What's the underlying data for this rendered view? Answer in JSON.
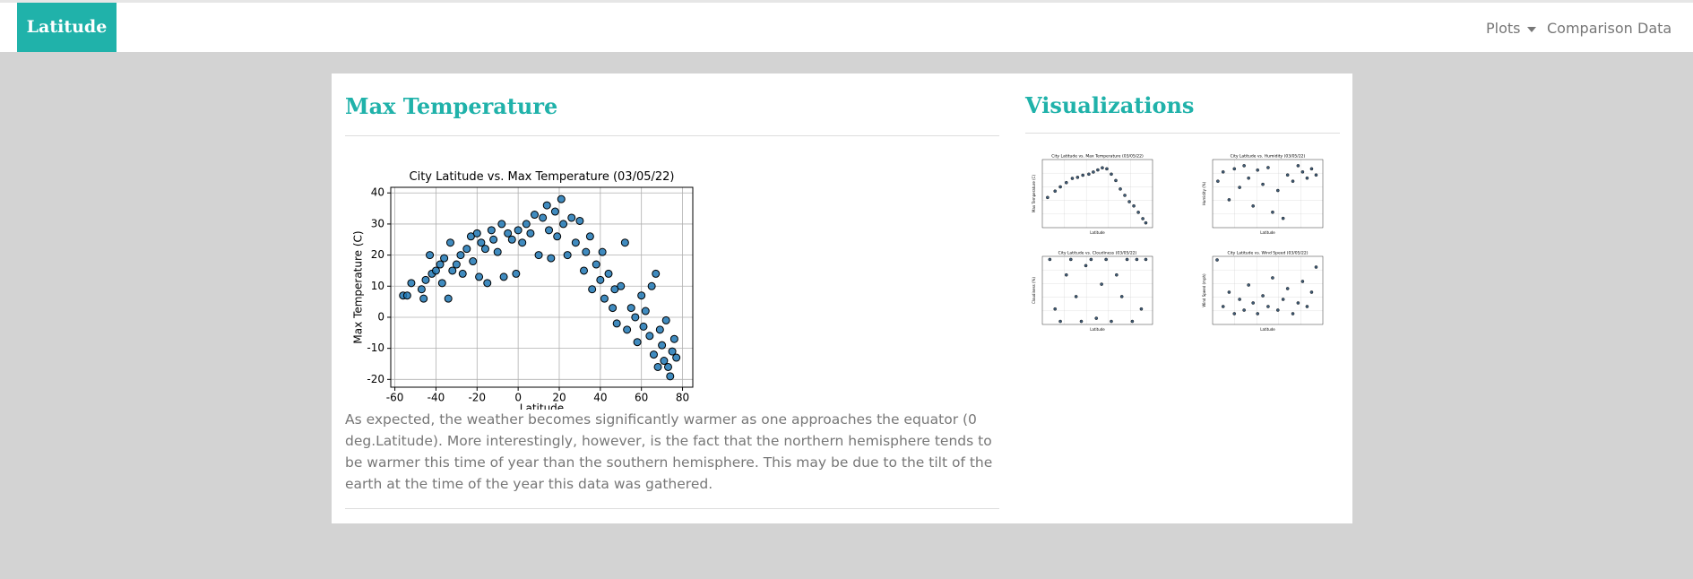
{
  "navbar": {
    "brand": "Latitude",
    "links": [
      "Plots",
      "Comparison",
      "Data"
    ]
  },
  "main": {
    "heading": "Max Temperature",
    "description": "As expected, the weather becomes significantly warmer as one approaches the equator (0 deg.Latitude). More interestingly, however, is the fact that the northern hemisphere tends to be warmer this time of year than the southern hemisphere. This may be due to the tilt of the earth at the time of the year this data was gathered."
  },
  "sidebar": {
    "heading": "Visualizations"
  },
  "chart_data": [
    {
      "type": "scatter",
      "title": "City Latitude vs. Max Temperature (03/05/22)",
      "x_label": "Latitude",
      "y_label": "Max Temperature (C)",
      "x": [
        -56,
        -54,
        -52,
        -47,
        -46,
        -45,
        -43,
        -42,
        -40,
        -38,
        -37,
        -36,
        -34,
        -33,
        -32,
        -30,
        -28,
        -27,
        -25,
        -23,
        -22,
        -20,
        -19,
        -18,
        -16,
        -15,
        -13,
        -12,
        -10,
        -8,
        -7,
        -5,
        -3,
        -1,
        0,
        2,
        4,
        6,
        8,
        10,
        12,
        14,
        15,
        16,
        18,
        19,
        21,
        22,
        24,
        26,
        28,
        30,
        32,
        33,
        35,
        36,
        38,
        40,
        41,
        42,
        44,
        46,
        47,
        48,
        50,
        52,
        53,
        55,
        57,
        58,
        60,
        61,
        62,
        64,
        65,
        66,
        67,
        68,
        69,
        70,
        71,
        72,
        73,
        74,
        75,
        76,
        77
      ],
      "y": [
        7,
        7,
        11,
        9,
        6,
        12,
        20,
        14,
        15,
        17,
        11,
        19,
        6,
        24,
        15,
        17,
        20,
        14,
        22,
        26,
        18,
        27,
        13,
        24,
        22,
        11,
        28,
        25,
        21,
        30,
        13,
        27,
        25,
        14,
        28,
        24,
        30,
        27,
        33,
        20,
        32,
        36,
        28,
        19,
        34,
        26,
        38,
        30,
        20,
        32,
        24,
        31,
        15,
        21,
        26,
        9,
        17,
        12,
        21,
        6,
        14,
        3,
        9,
        -2,
        10,
        24,
        -4,
        3,
        0,
        -8,
        7,
        -3,
        2,
        -6,
        10,
        -12,
        14,
        -16,
        -4,
        -9,
        -14,
        -1,
        -16,
        -19,
        -11,
        -7,
        -13
      ],
      "color": "#1f77b4",
      "xlim": [
        -62,
        85
      ],
      "ylim": [
        -22.5,
        41.8
      ],
      "xticks": [
        -60,
        -40,
        -20,
        0,
        20,
        40,
        60,
        80
      ],
      "yticks": [
        -20,
        -10,
        0,
        10,
        20,
        30,
        40
      ],
      "grid": true
    },
    {
      "type": "scatter",
      "title": "City Latitude vs. Max Temperature (03/05/22)",
      "x_label": "Latitude",
      "y_label": "Max Temperature (C)",
      "x": [
        -55,
        -45,
        -38,
        -30,
        -22,
        -15,
        -8,
        0,
        6,
        12,
        18,
        24,
        30,
        36,
        42,
        48,
        54,
        60,
        66,
        72,
        76
      ],
      "y": [
        6,
        12,
        16,
        20,
        24,
        25,
        27,
        28,
        30,
        32,
        34,
        33,
        28,
        22,
        14,
        8,
        2,
        -2,
        -8,
        -14,
        -18
      ],
      "color": "#1f3f5f",
      "xlim": [
        -62,
        85
      ],
      "ylim": [
        -22.5,
        41.8
      ],
      "grid": true
    },
    {
      "type": "scatter",
      "title": "City Latitude vs. Humidity (03/05/22)",
      "x_label": "Latitude",
      "y_label": "Humidity (%)",
      "x": [
        -55,
        -48,
        -40,
        -33,
        -26,
        -20,
        -14,
        -8,
        -2,
        5,
        12,
        18,
        25,
        32,
        38,
        45,
        52,
        58,
        64,
        70,
        76
      ],
      "y": [
        70,
        85,
        40,
        90,
        60,
        95,
        75,
        30,
        88,
        65,
        92,
        20,
        55,
        10,
        80,
        70,
        95,
        85,
        75,
        90,
        80
      ],
      "color": "#1f3f5f",
      "xlim": [
        -62,
        85
      ],
      "ylim": [
        -5,
        105
      ],
      "grid": true
    },
    {
      "type": "scatter",
      "title": "City Latitude vs. Cloudiness (03/05/22)",
      "x_label": "Latitude",
      "y_label": "Cloudiness (%)",
      "x": [
        -52,
        -45,
        -38,
        -30,
        -24,
        -17,
        -10,
        -4,
        3,
        10,
        17,
        23,
        30,
        37,
        44,
        51,
        58,
        64,
        70,
        76
      ],
      "y": [
        100,
        20,
        0,
        75,
        100,
        40,
        0,
        90,
        100,
        5,
        60,
        100,
        0,
        75,
        40,
        100,
        0,
        100,
        20,
        100
      ],
      "color": "#1f3f5f",
      "xlim": [
        -62,
        85
      ],
      "ylim": [
        -5,
        105
      ],
      "grid": true
    },
    {
      "type": "scatter",
      "title": "City Latitude vs. Wind Speed (03/05/22)",
      "x_label": "Latitude",
      "y_label": "Wind Speed (mph)",
      "x": [
        -56,
        -48,
        -40,
        -33,
        -26,
        -20,
        -14,
        -8,
        -2,
        5,
        12,
        18,
        25,
        32,
        38,
        45,
        52,
        58,
        64,
        70,
        76
      ],
      "y": [
        17,
        4,
        8,
        2,
        6,
        3,
        10,
        5,
        2,
        7,
        4,
        12,
        3,
        6,
        9,
        2,
        5,
        11,
        4,
        8,
        15
      ],
      "color": "#1f3f5f",
      "xlim": [
        -62,
        85
      ],
      "ylim": [
        -1,
        18
      ],
      "grid": true
    }
  ]
}
